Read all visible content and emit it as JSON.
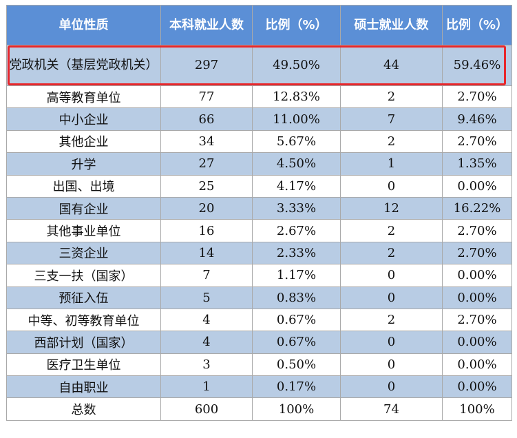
{
  "table": {
    "headers": {
      "unit_type": "单位性质",
      "bachelor_count": "本科就业人数",
      "bachelor_ratio": "比例（%）",
      "master_count": "硕士就业人数",
      "master_ratio": "比例（%）"
    },
    "rows": [
      {
        "unit": "党政机关（基层党政机关）",
        "b_count": "297",
        "b_ratio": "49.50%",
        "m_count": "44",
        "m_ratio": "59.46%"
      },
      {
        "unit": "高等教育单位",
        "b_count": "77",
        "b_ratio": "12.83%",
        "m_count": "2",
        "m_ratio": "2.70%"
      },
      {
        "unit": "中小企业",
        "b_count": "66",
        "b_ratio": "11.00%",
        "m_count": "7",
        "m_ratio": "9.46%"
      },
      {
        "unit": "其他企业",
        "b_count": "34",
        "b_ratio": "5.67%",
        "m_count": "2",
        "m_ratio": "2.70%"
      },
      {
        "unit": "升学",
        "b_count": "27",
        "b_ratio": "4.50%",
        "m_count": "1",
        "m_ratio": "1.35%"
      },
      {
        "unit": "出国、出境",
        "b_count": "25",
        "b_ratio": "4.17%",
        "m_count": "0",
        "m_ratio": "0.00%"
      },
      {
        "unit": "国有企业",
        "b_count": "20",
        "b_ratio": "3.33%",
        "m_count": "12",
        "m_ratio": "16.22%"
      },
      {
        "unit": "其他事业单位",
        "b_count": "16",
        "b_ratio": "2.67%",
        "m_count": "2",
        "m_ratio": "2.70%"
      },
      {
        "unit": "三资企业",
        "b_count": "14",
        "b_ratio": "2.33%",
        "m_count": "2",
        "m_ratio": "2.70%"
      },
      {
        "unit": "三支一扶（国家）",
        "b_count": "7",
        "b_ratio": "1.17%",
        "m_count": "0",
        "m_ratio": "0.00%"
      },
      {
        "unit": "预征入伍",
        "b_count": "5",
        "b_ratio": "0.83%",
        "m_count": "0",
        "m_ratio": "0.00%"
      },
      {
        "unit": "中等、初等教育单位",
        "b_count": "4",
        "b_ratio": "0.67%",
        "m_count": "2",
        "m_ratio": "2.70%"
      },
      {
        "unit": "西部计划（国家）",
        "b_count": "4",
        "b_ratio": "0.67%",
        "m_count": "0",
        "m_ratio": "0.00%"
      },
      {
        "unit": "医疗卫生单位",
        "b_count": "3",
        "b_ratio": "0.50%",
        "m_count": "0",
        "m_ratio": "0.00%"
      },
      {
        "unit": "自由职业",
        "b_count": "1",
        "b_ratio": "0.17%",
        "m_count": "0",
        "m_ratio": "0.00%"
      }
    ],
    "total": {
      "unit": "总数",
      "b_count": "600",
      "b_ratio": "100%",
      "m_count": "74",
      "m_ratio": "100%"
    }
  },
  "colors": {
    "header_bg": "#5b8fd6",
    "band_bg": "#b8cce4",
    "highlight_border": "#e8262a"
  }
}
